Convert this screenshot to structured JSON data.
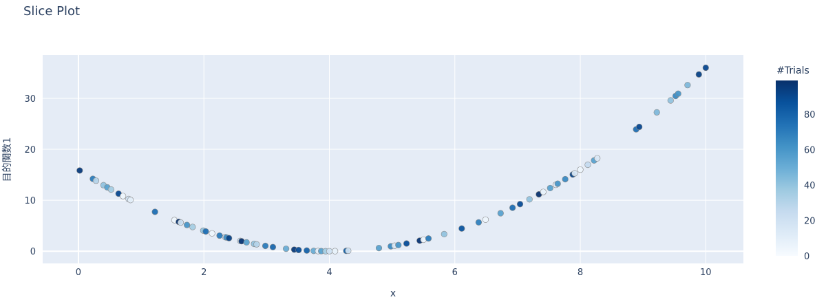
{
  "chart_data": {
    "type": "scatter",
    "title": "Slice Plot",
    "xlabel": "x",
    "ylabel": "目的関数1",
    "xlim": [
      -0.57,
      10.6
    ],
    "ylim": [
      -2.4,
      38.5
    ],
    "xticks": [
      0,
      2,
      4,
      6,
      8,
      10
    ],
    "yticks": [
      0,
      10,
      20,
      30
    ],
    "grid": true,
    "background": "#e5ecf6",
    "colorbar": {
      "title": "#Trials",
      "range": [
        0,
        99
      ],
      "ticks": [
        0,
        20,
        40,
        60,
        80
      ],
      "colorscale": [
        "#f7fbff",
        "#deebf7",
        "#c6dbef",
        "#9ecae1",
        "#6baed6",
        "#4292c6",
        "#2171b5",
        "#08519c",
        "#08306b"
      ]
    },
    "points": [
      {
        "x": 0.02,
        "y": 15.84,
        "trial": 95
      },
      {
        "x": 0.23,
        "y": 14.21,
        "trial": 70
      },
      {
        "x": 0.28,
        "y": 13.84,
        "trial": 30
      },
      {
        "x": 0.4,
        "y": 12.96,
        "trial": 40
      },
      {
        "x": 0.46,
        "y": 12.53,
        "trial": 55
      },
      {
        "x": 0.52,
        "y": 12.11,
        "trial": 35
      },
      {
        "x": 0.64,
        "y": 11.29,
        "trial": 90
      },
      {
        "x": 0.71,
        "y": 10.82,
        "trial": 5
      },
      {
        "x": 0.8,
        "y": 10.24,
        "trial": 20
      },
      {
        "x": 0.83,
        "y": 10.05,
        "trial": 10
      },
      {
        "x": 1.22,
        "y": 7.73,
        "trial": 75
      },
      {
        "x": 1.53,
        "y": 6.1,
        "trial": 5
      },
      {
        "x": 1.6,
        "y": 5.76,
        "trial": 98
      },
      {
        "x": 1.63,
        "y": 5.62,
        "trial": 20
      },
      {
        "x": 1.73,
        "y": 5.15,
        "trial": 60
      },
      {
        "x": 1.82,
        "y": 4.75,
        "trial": 35
      },
      {
        "x": 1.99,
        "y": 4.04,
        "trial": 40
      },
      {
        "x": 2.03,
        "y": 3.88,
        "trial": 75
      },
      {
        "x": 2.13,
        "y": 3.5,
        "trial": 5
      },
      {
        "x": 2.25,
        "y": 3.06,
        "trial": 70
      },
      {
        "x": 2.34,
        "y": 2.76,
        "trial": 25
      },
      {
        "x": 2.36,
        "y": 2.69,
        "trial": 65
      },
      {
        "x": 2.4,
        "y": 2.56,
        "trial": 92
      },
      {
        "x": 2.58,
        "y": 2.02,
        "trial": 25
      },
      {
        "x": 2.6,
        "y": 1.96,
        "trial": 97
      },
      {
        "x": 2.68,
        "y": 1.74,
        "trial": 55
      },
      {
        "x": 2.8,
        "y": 1.44,
        "trial": 40
      },
      {
        "x": 2.84,
        "y": 1.35,
        "trial": 30
      },
      {
        "x": 2.98,
        "y": 1.04,
        "trial": 70
      },
      {
        "x": 3.1,
        "y": 0.81,
        "trial": 78
      },
      {
        "x": 3.31,
        "y": 0.48,
        "trial": 50
      },
      {
        "x": 3.44,
        "y": 0.31,
        "trial": 95
      },
      {
        "x": 3.51,
        "y": 0.24,
        "trial": 88
      },
      {
        "x": 3.64,
        "y": 0.13,
        "trial": 80
      },
      {
        "x": 3.75,
        "y": 0.06,
        "trial": 50
      },
      {
        "x": 3.82,
        "y": 0.03,
        "trial": 10
      },
      {
        "x": 3.87,
        "y": 0.02,
        "trial": 55
      },
      {
        "x": 3.94,
        "y": 0.0,
        "trial": 35
      },
      {
        "x": 4.0,
        "y": 0.0,
        "trial": 20
      },
      {
        "x": 4.09,
        "y": 0.01,
        "trial": 8
      },
      {
        "x": 4.27,
        "y": 0.07,
        "trial": 80
      },
      {
        "x": 4.3,
        "y": 0.09,
        "trial": 20
      },
      {
        "x": 4.79,
        "y": 0.62,
        "trial": 55
      },
      {
        "x": 4.98,
        "y": 0.96,
        "trial": 65
      },
      {
        "x": 5.04,
        "y": 1.08,
        "trial": 15
      },
      {
        "x": 5.1,
        "y": 1.21,
        "trial": 60
      },
      {
        "x": 5.23,
        "y": 1.51,
        "trial": 88
      },
      {
        "x": 5.44,
        "y": 2.07,
        "trial": 97
      },
      {
        "x": 5.5,
        "y": 2.25,
        "trial": 5
      },
      {
        "x": 5.58,
        "y": 2.5,
        "trial": 70
      },
      {
        "x": 5.83,
        "y": 3.35,
        "trial": 40
      },
      {
        "x": 6.11,
        "y": 4.45,
        "trial": 85
      },
      {
        "x": 6.38,
        "y": 5.66,
        "trial": 68
      },
      {
        "x": 6.49,
        "y": 6.2,
        "trial": 5
      },
      {
        "x": 6.73,
        "y": 7.45,
        "trial": 55
      },
      {
        "x": 6.92,
        "y": 8.53,
        "trial": 75
      },
      {
        "x": 7.04,
        "y": 9.24,
        "trial": 88
      },
      {
        "x": 7.19,
        "y": 10.18,
        "trial": 40
      },
      {
        "x": 7.34,
        "y": 11.16,
        "trial": 98
      },
      {
        "x": 7.41,
        "y": 11.63,
        "trial": 8
      },
      {
        "x": 7.52,
        "y": 12.39,
        "trial": 55
      },
      {
        "x": 7.61,
        "y": 13.03,
        "trial": 12
      },
      {
        "x": 7.64,
        "y": 13.25,
        "trial": 60
      },
      {
        "x": 7.76,
        "y": 14.14,
        "trial": 65
      },
      {
        "x": 7.88,
        "y": 15.05,
        "trial": 92
      },
      {
        "x": 7.91,
        "y": 15.29,
        "trial": 15
      },
      {
        "x": 8.0,
        "y": 16.0,
        "trial": 5
      },
      {
        "x": 8.12,
        "y": 16.97,
        "trial": 25
      },
      {
        "x": 8.22,
        "y": 17.81,
        "trial": 55
      },
      {
        "x": 8.27,
        "y": 18.23,
        "trial": 15
      },
      {
        "x": 8.89,
        "y": 23.91,
        "trial": 75
      },
      {
        "x": 8.94,
        "y": 24.4,
        "trial": 90
      },
      {
        "x": 9.22,
        "y": 27.25,
        "trial": 45
      },
      {
        "x": 9.44,
        "y": 29.59,
        "trial": 40
      },
      {
        "x": 9.52,
        "y": 30.47,
        "trial": 65
      },
      {
        "x": 9.56,
        "y": 30.91,
        "trial": 60
      },
      {
        "x": 9.71,
        "y": 32.6,
        "trial": 45
      },
      {
        "x": 9.89,
        "y": 34.69,
        "trial": 92
      },
      {
        "x": 10.0,
        "y": 36.0,
        "trial": 90
      }
    ]
  }
}
